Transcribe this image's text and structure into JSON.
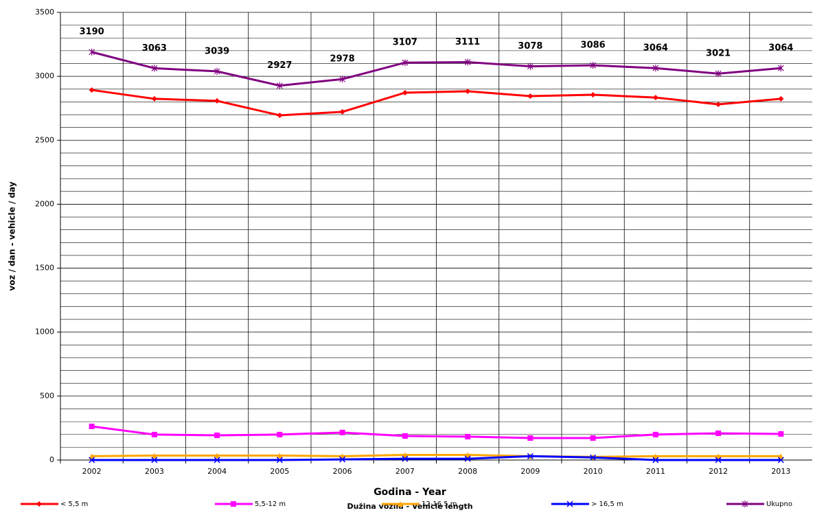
{
  "chart_data": {
    "type": "line",
    "x_label": "Godina - Year",
    "x_sublabel": "Dužina vozila - Vehicle length",
    "y_label": "voz / dan - vehicle / day",
    "categories": [
      "2002",
      "2003",
      "2004",
      "2005",
      "2006",
      "2007",
      "2008",
      "2009",
      "2010",
      "2011",
      "2012",
      "2013"
    ],
    "series": [
      {
        "name": "< 5,5 m",
        "color": "#ff0000",
        "marker": "diamond",
        "values": [
          2893,
          2824,
          2808,
          2695,
          2722,
          2872,
          2883,
          2845,
          2856,
          2834,
          2781,
          2824
        ]
      },
      {
        "name": "5,5-12 m",
        "color": "#ff00ff",
        "marker": "square",
        "values": [
          263,
          199,
          193,
          199,
          215,
          188,
          183,
          172,
          172,
          199,
          209,
          204
        ]
      },
      {
        "name": "12-16,5 m",
        "color": "#ffa500",
        "marker": "triangle",
        "values": [
          30,
          35,
          35,
          35,
          30,
          40,
          40,
          30,
          25,
          30,
          30,
          30
        ]
      },
      {
        "name": "> 16,5 m",
        "color": "#0000ff",
        "marker": "x",
        "values": [
          0,
          0,
          0,
          0,
          5,
          10,
          10,
          30,
          20,
          0,
          0,
          0
        ]
      },
      {
        "name": "Ukupno",
        "color": "#800080",
        "marker": "star",
        "data_labels": true,
        "values": [
          3190,
          3063,
          3039,
          2927,
          2978,
          3107,
          3111,
          3078,
          3086,
          3064,
          3021,
          3064
        ]
      }
    ],
    "ylim": [
      0,
      3500
    ],
    "yticks": [
      0,
      500,
      1000,
      1500,
      2000,
      2500,
      3000,
      3500
    ],
    "grid": true,
    "legend": "bottom"
  }
}
